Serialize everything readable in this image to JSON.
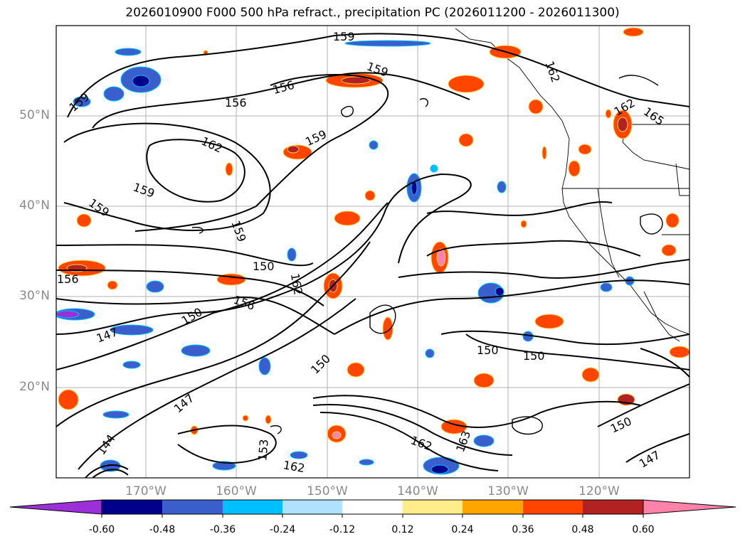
{
  "title": "2026010900 F000 500 hPa refract., precipitation PC (2026011200 - 2026011300)",
  "lat_labels": [
    "50°N",
    "40°N",
    "30°N",
    "20°N"
  ],
  "lon_labels": [
    "170°W",
    "160°W",
    "150°W",
    "140°W",
    "130°W",
    "120°W"
  ],
  "contour_labels": [
    "159",
    "159",
    "156",
    "156",
    "162",
    "159",
    "159",
    "159",
    "162",
    "165",
    "162",
    "150",
    "156",
    "150",
    "162",
    "159",
    "147",
    "150",
    "147",
    "144",
    "150",
    "150",
    "153",
    "162",
    "162",
    "150",
    "147",
    "163",
    "156",
    "159"
  ],
  "colorbar": {
    "ticks": [
      "-0.60",
      "-0.48",
      "-0.36",
      "-0.24",
      "-0.12",
      "0.12",
      "0.24",
      "0.36",
      "0.48",
      "0.60"
    ],
    "colors": [
      "#9b30d9",
      "#00008b",
      "#3a5fcd",
      "#00bfff",
      "#b0e2ff",
      "#ffffff",
      "#ffec8b",
      "#ffa500",
      "#ff4500",
      "#b22222",
      "#ff82ab"
    ]
  }
}
